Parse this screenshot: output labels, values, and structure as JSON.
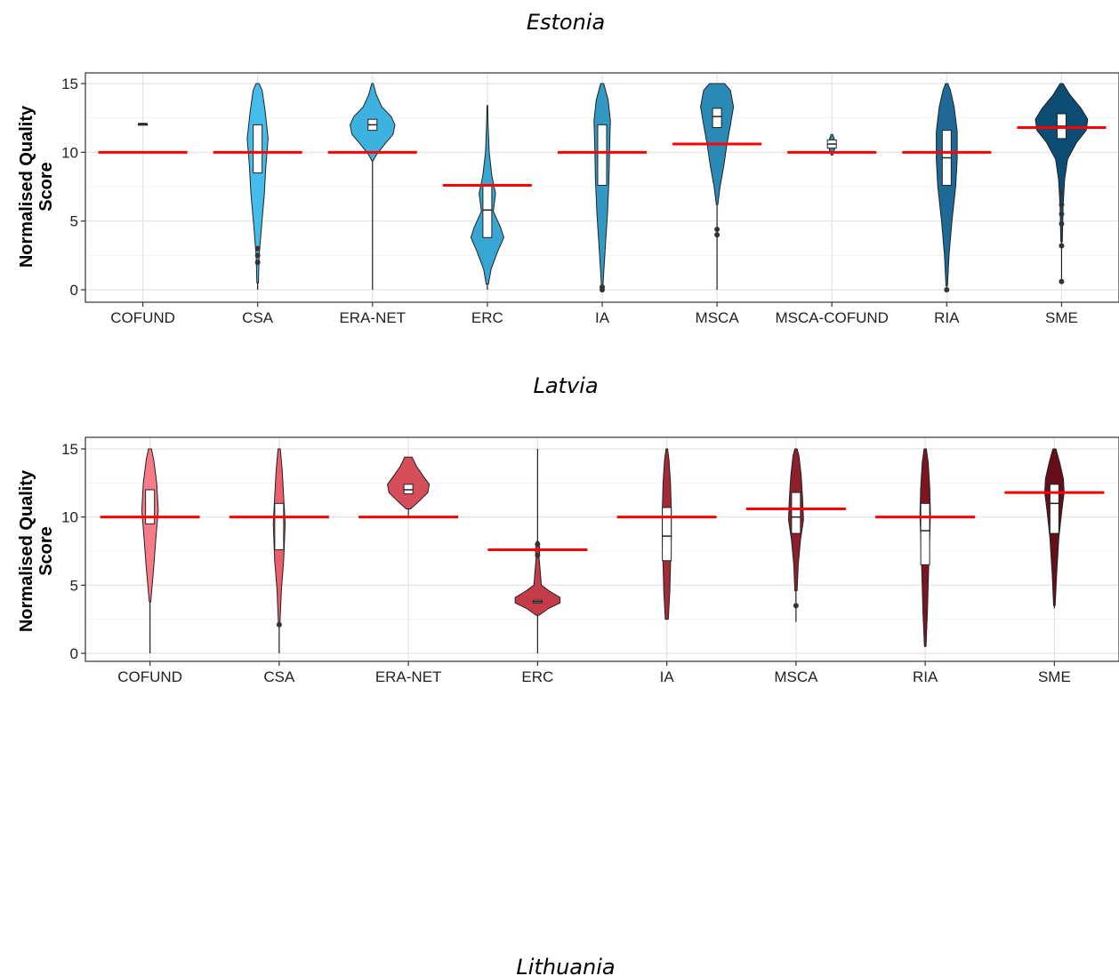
{
  "figure": {
    "bottom_title": "Lithuania"
  },
  "chart_data": [
    {
      "type": "violin",
      "title": "Estonia",
      "ylabel": [
        "Normalised Quality",
        "Score"
      ],
      "xlabel": "",
      "ylim": [
        0,
        15
      ],
      "yticks": [
        0,
        5,
        10,
        15
      ],
      "grid": true,
      "categories": [
        "COFUND",
        "CSA",
        "ERA-NET",
        "ERC",
        "IA",
        "MSCA",
        "MSCA-COFUND",
        "RIA",
        "SME"
      ],
      "colors": [
        "#4FC3F7",
        "#45BCEC",
        "#3DB2E0",
        "#38A6D2",
        "#3199C4",
        "#2A8AB5",
        "#2A8AB5",
        "#1E6A97",
        "#0D4C73"
      ],
      "reference_color": "#FF0000",
      "reference_values": [
        10.0,
        10.0,
        10.0,
        7.6,
        10.0,
        10.6,
        10.0,
        10.0,
        11.8
      ],
      "violins": [
        {
          "ymin": 12.0,
          "ymax": 12.1,
          "profile": [
            [
              12.0,
              8
            ],
            [
              12.05,
              8
            ],
            [
              12.1,
              8
            ]
          ],
          "box": [
            12.0,
            12.05,
            12.1
          ],
          "outliers": []
        },
        {
          "ymin": 0.0,
          "ymax": 15.0,
          "profile": [
            [
              0.5,
              2
            ],
            [
              2.5,
              4
            ],
            [
              4.5,
              10
            ],
            [
              7,
              18
            ],
            [
              9,
              22
            ],
            [
              11,
              28
            ],
            [
              13,
              20
            ],
            [
              14.5,
              12
            ],
            [
              15,
              4
            ]
          ],
          "box": [
            8.5,
            10.0,
            12.0
          ],
          "outliers": [
            3.0,
            2.5,
            2.0
          ]
        },
        {
          "ymin": 0.0,
          "ymax": 15.0,
          "profile": [
            [
              9.4,
              2
            ],
            [
              9.8,
              10
            ],
            [
              10.5,
              30
            ],
            [
              11.3,
              55
            ],
            [
              12.0,
              60
            ],
            [
              12.6,
              50
            ],
            [
              13.3,
              25
            ],
            [
              14.2,
              10
            ],
            [
              15,
              2
            ]
          ],
          "box": [
            11.6,
            12.0,
            12.4
          ],
          "outliers": []
        },
        {
          "ymin": 0.0,
          "ymax": 13.4,
          "profile": [
            [
              0.4,
              3
            ],
            [
              1.5,
              10
            ],
            [
              2.8,
              28
            ],
            [
              3.8,
              44
            ],
            [
              4.5,
              36
            ],
            [
              5.7,
              16
            ],
            [
              7.0,
              22
            ],
            [
              8.3,
              12
            ],
            [
              10,
              5
            ],
            [
              12,
              2
            ],
            [
              13.4,
              1
            ]
          ],
          "box": [
            3.8,
            5.8,
            7.6
          ],
          "outliers": []
        },
        {
          "ymin": 0.0,
          "ymax": 15.0,
          "profile": [
            [
              0.3,
              2
            ],
            [
              3,
              8
            ],
            [
              5.5,
              14
            ],
            [
              8,
              18
            ],
            [
              10.5,
              20
            ],
            [
              12.3,
              22
            ],
            [
              13.8,
              16
            ],
            [
              15,
              4
            ]
          ],
          "box": [
            7.6,
            10.0,
            12.0
          ],
          "outliers": [
            0.2,
            0.0
          ]
        },
        {
          "ymin": 0.0,
          "ymax": 15.0,
          "profile": [
            [
              6.2,
              2
            ],
            [
              7.5,
              8
            ],
            [
              9,
              18
            ],
            [
              10.5,
              26
            ],
            [
              12,
              36
            ],
            [
              13.3,
              44
            ],
            [
              14.5,
              36
            ],
            [
              15,
              20
            ]
          ],
          "box": [
            11.8,
            12.6,
            13.2
          ],
          "outliers": [
            4.4,
            4.0
          ]
        },
        {
          "ymin": 9.8,
          "ymax": 11.3,
          "profile": [
            [
              9.8,
              2
            ],
            [
              10.2,
              7
            ],
            [
              10.6,
              9
            ],
            [
              11.0,
              6
            ],
            [
              11.3,
              2
            ]
          ],
          "box": [
            10.3,
            10.6,
            10.9
          ],
          "outliers": []
        },
        {
          "ymin": 0.0,
          "ymax": 15.0,
          "profile": [
            [
              0.3,
              2
            ],
            [
              2.5,
              6
            ],
            [
              5,
              14
            ],
            [
              7.5,
              24
            ],
            [
              9.5,
              28
            ],
            [
              11.5,
              28
            ],
            [
              13.3,
              20
            ],
            [
              14.5,
              10
            ],
            [
              15,
              3
            ]
          ],
          "box": [
            7.6,
            9.6,
            11.6
          ],
          "outliers": [
            0.0
          ]
        },
        {
          "ymin": 0.6,
          "ymax": 15.0,
          "profile": [
            [
              3.5,
              2
            ],
            [
              6,
              4
            ],
            [
              8,
              8
            ],
            [
              9.5,
              16
            ],
            [
              10.7,
              40
            ],
            [
              11.6,
              66
            ],
            [
              12.4,
              70
            ],
            [
              13.2,
              52
            ],
            [
              14.2,
              22
            ],
            [
              15,
              4
            ]
          ],
          "box": [
            11.0,
            11.9,
            12.8
          ],
          "outliers": [
            7.0,
            6.2,
            5.5,
            4.8,
            3.2,
            0.6
          ]
        }
      ]
    },
    {
      "type": "violin",
      "title": "Latvia",
      "ylabel": [
        "Normalised Quality",
        "Score"
      ],
      "xlabel": "",
      "ylim": [
        0,
        15
      ],
      "yticks": [
        0,
        5,
        10,
        15
      ],
      "grid": true,
      "categories": [
        "COFUND",
        "CSA",
        "ERA-NET",
        "ERC",
        "IA",
        "MSCA",
        "RIA",
        "SME"
      ],
      "colors": [
        "#F77B86",
        "#E8606B",
        "#D54E5A",
        "#C43C4A",
        "#A32A39",
        "#8E1F2D",
        "#7B1522",
        "#660E1A"
      ],
      "reference_color": "#FF0000",
      "reference_values": [
        10.0,
        10.0,
        10.0,
        7.6,
        10.0,
        10.6,
        10.0,
        11.8
      ],
      "violins": [
        {
          "ymin": 0.0,
          "ymax": 15.0,
          "profile": [
            [
              3.8,
              2
            ],
            [
              6.3,
              10
            ],
            [
              8.5,
              16
            ],
            [
              10.5,
              22
            ],
            [
              12.5,
              18
            ],
            [
              14.2,
              10
            ],
            [
              15,
              4
            ]
          ],
          "box": [
            9.5,
            10.0,
            12.0
          ],
          "outliers": []
        },
        {
          "ymin": 0.0,
          "ymax": 15.0,
          "profile": [
            [
              2.2,
              2
            ],
            [
              4.7,
              6
            ],
            [
              6.8,
              12
            ],
            [
              9.5,
              16
            ],
            [
              11.5,
              12
            ],
            [
              13.5,
              8
            ],
            [
              15,
              3
            ]
          ],
          "box": [
            7.6,
            10.0,
            11.0
          ],
          "outliers": [
            2.1
          ]
        },
        {
          "ymin": 10.0,
          "ymax": 14.4,
          "profile": [
            [
              10.6,
              6
            ],
            [
              11.2,
              30
            ],
            [
              11.8,
              52
            ],
            [
              12.4,
              56
            ],
            [
              13.0,
              40
            ],
            [
              13.7,
              22
            ],
            [
              14.4,
              10
            ]
          ],
          "box": [
            11.7,
            12.0,
            12.4
          ],
          "outliers": []
        },
        {
          "ymin": 0.0,
          "ymax": 15.0,
          "profile": [
            [
              2.8,
              4
            ],
            [
              3.3,
              30
            ],
            [
              3.7,
              60
            ],
            [
              4.1,
              60
            ],
            [
              4.6,
              30
            ],
            [
              5.0,
              10
            ],
            [
              7.0,
              4
            ],
            [
              7.6,
              6
            ],
            [
              8.2,
              3
            ]
          ],
          "box": [
            3.7,
            3.8,
            3.9
          ],
          "outliers": [
            8.0,
            7.2
          ]
        },
        {
          "ymin": 2.5,
          "ymax": 15.0,
          "profile": [
            [
              2.5,
              4
            ],
            [
              4.5,
              8
            ],
            [
              6.5,
              10
            ],
            [
              8.5,
              12
            ],
            [
              10.5,
              12
            ],
            [
              12.5,
              10
            ],
            [
              14.2,
              6
            ],
            [
              15,
              2
            ]
          ],
          "box": [
            6.8,
            8.6,
            10.7
          ],
          "outliers": []
        },
        {
          "ymin": 2.3,
          "ymax": 15.0,
          "profile": [
            [
              4.6,
              3
            ],
            [
              6.5,
              6
            ],
            [
              8.3,
              12
            ],
            [
              9.8,
              20
            ],
            [
              11.2,
              18
            ],
            [
              13,
              14
            ],
            [
              14.5,
              8
            ],
            [
              15,
              3
            ]
          ],
          "box": [
            8.8,
            10.0,
            11.8
          ],
          "outliers": [
            3.5
          ]
        },
        {
          "ymin": 0.5,
          "ymax": 15.0,
          "profile": [
            [
              0.5,
              2
            ],
            [
              3,
              6
            ],
            [
              6,
              9
            ],
            [
              8.5,
              12
            ],
            [
              10.2,
              14
            ],
            [
              12.2,
              12
            ],
            [
              14,
              8
            ],
            [
              15,
              3
            ]
          ],
          "box": [
            6.5,
            9.0,
            11.0
          ],
          "outliers": []
        },
        {
          "ymin": 3.3,
          "ymax": 15.0,
          "profile": [
            [
              3.5,
              2
            ],
            [
              5.8,
              6
            ],
            [
              8.5,
              12
            ],
            [
              10.5,
              20
            ],
            [
              11.8,
              26
            ],
            [
              12.8,
              24
            ],
            [
              14,
              14
            ],
            [
              15,
              4
            ]
          ],
          "box": [
            8.8,
            11.0,
            12.4
          ],
          "outliers": []
        }
      ]
    }
  ]
}
